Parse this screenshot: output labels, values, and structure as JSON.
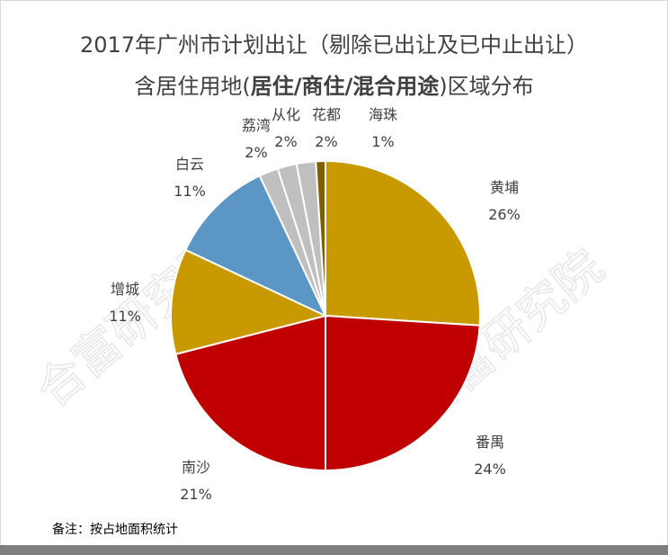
{
  "title_line1": "2017年广州市计划出让（剔除已出让及已中止出让）",
  "title_line2": {
    "prefix": "含居住用地(",
    "bold": "居住/商住/混合用途",
    "suffix": ")区域分布"
  },
  "footnote": "备注：按占地面积统计",
  "watermark": "合富研究院",
  "chart_data": {
    "type": "pie",
    "start": "12 o'clock",
    "direction": "clockwise",
    "slices": [
      {
        "name": "黄埔",
        "label": "26%",
        "value": 26,
        "color": "#C99A00"
      },
      {
        "name": "番禺",
        "label": "24%",
        "value": 24,
        "color": "#C00000"
      },
      {
        "name": "南沙",
        "label": "21%",
        "value": 21,
        "color": "#C00000"
      },
      {
        "name": "增城",
        "label": "11%",
        "value": 11,
        "color": "#C99A00"
      },
      {
        "name": "白云",
        "label": "11%",
        "value": 11,
        "color": "#5B96C4"
      },
      {
        "name": "荔湾",
        "label": "2%",
        "value": 2,
        "color": "#BFBFBF"
      },
      {
        "name": "从化",
        "label": "2%",
        "value": 2,
        "color": "#BFBFBF"
      },
      {
        "name": "花都",
        "label": "2%",
        "value": 2,
        "color": "#BFBFBF"
      },
      {
        "name": "海珠",
        "label": "1%",
        "value": 1,
        "color": "#7F6000"
      }
    ]
  }
}
